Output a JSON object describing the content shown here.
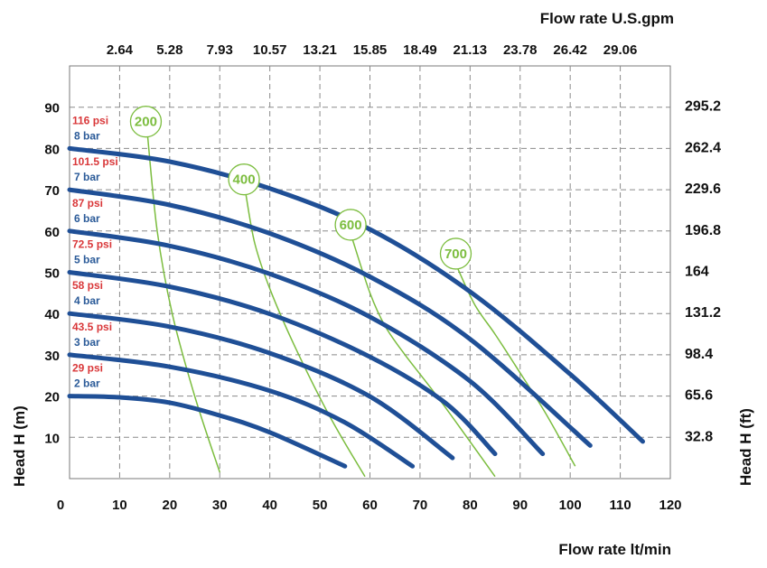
{
  "chart_data": {
    "type": "line",
    "xlabel": "Flow rate  lt/min",
    "ylabel_left": "Head H (m)",
    "ylabel_right": "Head H (ft)",
    "x2label": "Flow rate U.S.gpm",
    "xlim": [
      0,
      120
    ],
    "ylim": [
      0,
      100
    ],
    "grid": true,
    "x_ticks": [
      "0",
      "10",
      "20",
      "30",
      "40",
      "50",
      "60",
      "70",
      "80",
      "90",
      "100",
      "110",
      "120"
    ],
    "y_ticks": [
      "10",
      "20",
      "30",
      "40",
      "50",
      "60",
      "70",
      "80",
      "90"
    ],
    "gpm_ticks": [
      "2.64",
      "5.28",
      "7.93",
      "10.57",
      "13.21",
      "15.85",
      "18.49",
      "21.13",
      "23.78",
      "26.42",
      "29.06"
    ],
    "ft_ticks": [
      "32.8",
      "65.6",
      "98.4",
      "131.2",
      "164",
      "196.8",
      "229.6",
      "262.4",
      "295.2"
    ],
    "pressure_series": [
      {
        "name": "8 bar",
        "psi": "116 psi",
        "color": "#1f4f96",
        "x": [
          0,
          20,
          40,
          60,
          80,
          100,
          114.5
        ],
        "y": [
          80,
          76.8,
          70.3,
          60.4,
          45.3,
          25.3,
          9
        ]
      },
      {
        "name": "7 bar",
        "psi": "101.5 psi",
        "color": "#1f4f96",
        "x": [
          0,
          20,
          40,
          60,
          80,
          104
        ],
        "y": [
          70,
          66.3,
          59.4,
          48.9,
          33.8,
          8
        ]
      },
      {
        "name": "6 bar",
        "psi": "87 psi",
        "color": "#1f4f96",
        "x": [
          0,
          20,
          40,
          60,
          80,
          94.5
        ],
        "y": [
          60,
          56.4,
          49.6,
          39.2,
          23.6,
          6
        ]
      },
      {
        "name": "5 bar",
        "psi": "72.5 psi",
        "color": "#1f4f96",
        "x": [
          0,
          20,
          40,
          60,
          75,
          85
        ],
        "y": [
          50,
          46.5,
          39.9,
          29.5,
          18.4,
          6
        ]
      },
      {
        "name": "4 bar",
        "psi": "58 psi",
        "color": "#1f4f96",
        "x": [
          0,
          20,
          40,
          60,
          76.5
        ],
        "y": [
          40,
          36.8,
          30.4,
          19.9,
          5
        ]
      },
      {
        "name": "3 bar",
        "psi": "43.5 psi",
        "color": "#1f4f96",
        "x": [
          0,
          20,
          40,
          55,
          68.5
        ],
        "y": [
          30,
          27.1,
          21.3,
          13.6,
          3
        ]
      },
      {
        "name": "2 bar",
        "psi": "29 psi",
        "color": "#1f4f96",
        "x": [
          0,
          10,
          20,
          30,
          40,
          55
        ],
        "y": [
          20,
          19.7,
          18.4,
          15.3,
          11.2,
          3
        ]
      }
    ],
    "speed_series": [
      {
        "name": "200",
        "color": "#7cbd3f",
        "x": [
          15.6,
          17.5,
          20.5,
          25,
          30
        ],
        "y": [
          83,
          60,
          40,
          20,
          1.5
        ]
      },
      {
        "name": "400",
        "color": "#7cbd3f",
        "x": [
          35.2,
          37,
          40,
          45,
          52,
          59
        ],
        "y": [
          69,
          57,
          46,
          32,
          15,
          0.5
        ]
      },
      {
        "name": "600",
        "color": "#7cbd3f",
        "x": [
          56.5,
          60,
          63,
          67,
          74,
          85
        ],
        "y": [
          58,
          45,
          37,
          30,
          19,
          0.5
        ]
      },
      {
        "name": "700",
        "color": "#7cbd3f",
        "x": [
          77.5,
          81,
          85,
          89,
          95,
          101
        ],
        "y": [
          51,
          42,
          35,
          27.5,
          16,
          3
        ]
      }
    ]
  }
}
